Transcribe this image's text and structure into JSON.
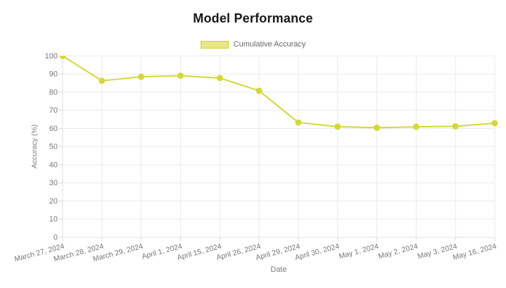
{
  "chart_data": {
    "type": "line",
    "title": "Model Performance",
    "xlabel": "Date",
    "ylabel": "Accuracy (%)",
    "categories": [
      "March 27, 2024",
      "March 28, 2024",
      "March 29, 2024",
      "April 1, 2024",
      "April 15, 2024",
      "April 26, 2024",
      "April 29, 2024",
      "April 30, 2024",
      "May 1, 2024",
      "May 2, 2024",
      "May 3, 2024",
      "May 16, 2024"
    ],
    "series": [
      {
        "name": "Cumulative Accuracy",
        "values": [
          100,
          86.3,
          88.5,
          89.1,
          87.8,
          80.8,
          63.3,
          61.0,
          60.4,
          60.9,
          61.2,
          62.9
        ]
      }
    ],
    "ylim": [
      0,
      100
    ],
    "ytick_step": 10,
    "grid": true,
    "legend_position": "top",
    "colors": {
      "line": "#d5d73a",
      "point": "#d5d73a",
      "legend_fill": "rgba(213,215,58,0.6)",
      "legend_border": "#d0d23c",
      "grid": "#ebebeb",
      "axis": "#e0e0e0",
      "tick": "#d8d8d8",
      "tick_text": "#777777"
    }
  }
}
